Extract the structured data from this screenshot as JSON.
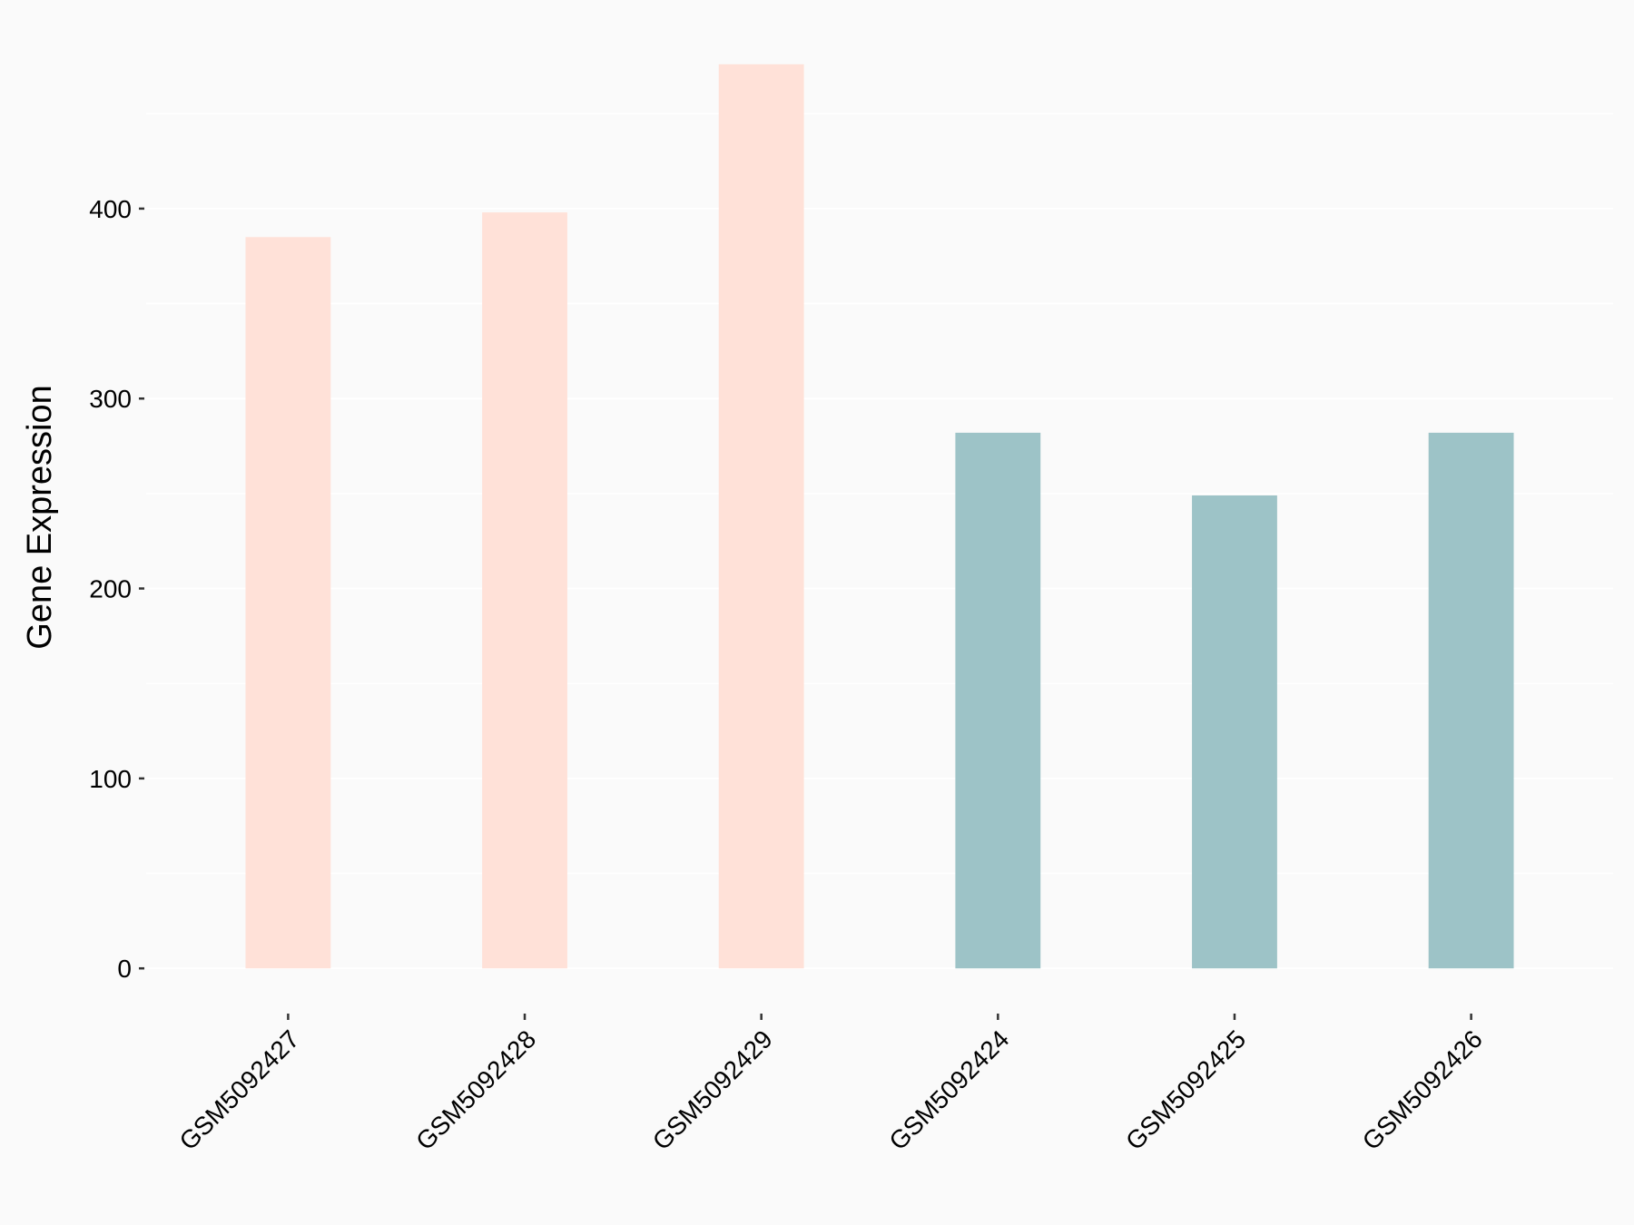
{
  "chart_data": {
    "type": "bar",
    "y_label": "Gene Expression",
    "categories": [
      "GSM5092427",
      "GSM5092428",
      "GSM5092429",
      "GSM5092424",
      "GSM5092425",
      "GSM5092426"
    ],
    "values": [
      385,
      398,
      476,
      282,
      249,
      282
    ],
    "colors": [
      "#FFE1D8",
      "#FFE1D8",
      "#FFE1D8",
      "#9DC3C7",
      "#9DC3C7",
      "#9DC3C7"
    ],
    "ylim": [
      -23.8,
      499.8
    ],
    "yticks": [
      0,
      100,
      200,
      300,
      400
    ],
    "minor_yticks": [
      50,
      150,
      250,
      350,
      450
    ],
    "grid": true
  }
}
